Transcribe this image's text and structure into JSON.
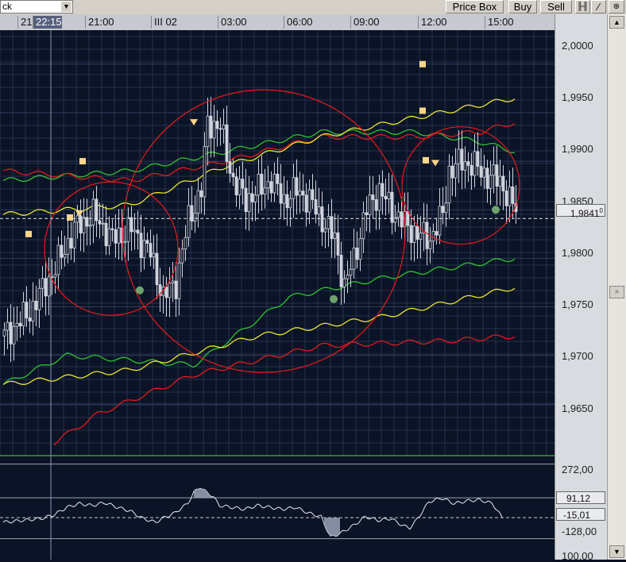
{
  "toolbar": {
    "symbol_value": "ck",
    "buttons": [
      "Price Box",
      "Buy",
      "Sell"
    ],
    "icon_names": [
      "bars-icon",
      "pen-icon",
      "crosshair-icon"
    ]
  },
  "time_axis": {
    "labels": [
      "21",
      "22:15",
      "21:00",
      "III 02",
      "03:00",
      "06:00",
      "09:00",
      "12:00",
      "15:00"
    ],
    "highlight_index": 1
  },
  "price_axis": {
    "ticks": [
      "2,0000",
      "1,9950",
      "1,9900",
      "1,9850",
      "1,9800",
      "1,9750",
      "1,9700",
      "1,9650"
    ],
    "current_price_label": "1,9841",
    "current_price_suffix": "0"
  },
  "indicator_axis": {
    "ticks": [
      "272,00",
      "-128,00",
      "100,00"
    ],
    "tags": [
      "91,12",
      "-15,01"
    ]
  },
  "colors": {
    "background": "#0b1326",
    "grid": "#24324f",
    "candle": "#cfd3dc",
    "band_green": "#2ec32e",
    "band_red": "#e11b1b",
    "band_yellow": "#e7e52a",
    "circle": "#e81b1b",
    "marker_square": "#ffd58a",
    "marker_dot": "#6fa36f",
    "indicator_fill": "#9aa3b8"
  },
  "chart_data": [
    {
      "type": "candlestick",
      "title": "",
      "x_labels": [
        "21",
        "22:15",
        "21:00",
        "III 02",
        "03:00",
        "06:00",
        "09:00",
        "12:00",
        "15:00"
      ],
      "ylim": [
        1.96,
        2.0035
      ],
      "y_ticks": [
        1.965,
        1.97,
        1.975,
        1.98,
        1.985,
        1.99,
        1.995,
        2.0
      ],
      "grid": true,
      "current_price": 1.9841,
      "close_path": [
        [
          0,
          1.972
        ],
        [
          8,
          1.9745
        ],
        [
          16,
          1.979
        ],
        [
          22,
          1.983
        ],
        [
          28,
          1.9845
        ],
        [
          34,
          1.982
        ],
        [
          40,
          1.983
        ],
        [
          46,
          1.9805
        ],
        [
          50,
          1.976
        ],
        [
          54,
          1.9775
        ],
        [
          58,
          1.984
        ],
        [
          62,
          1.987
        ],
        [
          64,
          1.994
        ],
        [
          68,
          1.9935
        ],
        [
          72,
          1.988
        ],
        [
          76,
          1.986
        ],
        [
          80,
          1.987
        ],
        [
          84,
          1.988
        ],
        [
          88,
          1.986
        ],
        [
          92,
          1.987
        ],
        [
          96,
          1.986
        ],
        [
          100,
          1.984
        ],
        [
          104,
          1.982
        ],
        [
          107,
          1.977
        ],
        [
          110,
          1.98
        ],
        [
          114,
          1.985
        ],
        [
          118,
          1.987
        ],
        [
          122,
          1.985
        ],
        [
          126,
          1.9835
        ],
        [
          130,
          1.9825
        ],
        [
          134,
          1.982
        ],
        [
          138,
          1.9845
        ],
        [
          140,
          1.989
        ],
        [
          144,
          1.99
        ],
        [
          148,
          1.9895
        ],
        [
          152,
          1.9885
        ],
        [
          156,
          1.988
        ],
        [
          159,
          1.986
        ],
        [
          161,
          1.985
        ]
      ],
      "bands": [
        {
          "color": "green",
          "upper": [
            [
              0,
              1.988
            ],
            [
              40,
              1.989
            ],
            [
              70,
              1.991
            ],
            [
              100,
              1.993
            ],
            [
              130,
              1.993
            ],
            [
              150,
              1.992
            ],
            [
              161,
              1.991
            ]
          ],
          "lower": [
            [
              0,
              1.967
            ],
            [
              20,
              1.97
            ],
            [
              60,
              1.969
            ],
            [
              90,
              1.976
            ],
            [
              120,
              1.978
            ],
            [
              140,
              1.979
            ],
            [
              161,
              1.98
            ]
          ]
        },
        {
          "color": "red",
          "upper": [
            [
              0,
              1.989
            ],
            [
              40,
              1.988
            ],
            [
              70,
              1.99
            ],
            [
              100,
              1.9925
            ],
            [
              130,
              1.9925
            ],
            [
              150,
              1.993
            ],
            [
              161,
              1.994
            ]
          ],
          "lower": [
            [
              16,
              1.961
            ],
            [
              30,
              1.964
            ],
            [
              60,
              1.968
            ],
            [
              100,
              1.971
            ],
            [
              140,
              1.9715
            ],
            [
              161,
              1.972
            ]
          ]
        },
        {
          "color": "yellow",
          "upper": [
            [
              0,
              1.9845
            ],
            [
              40,
              1.9855
            ],
            [
              70,
              1.9895
            ],
            [
              100,
              1.9925
            ],
            [
              130,
              1.9945
            ],
            [
              161,
              1.9965
            ]
          ],
          "lower": [
            [
              0,
              1.967
            ],
            [
              40,
              1.9685
            ],
            [
              80,
              1.972
            ],
            [
              120,
              1.974
            ],
            [
              161,
              1.977
            ]
          ]
        }
      ],
      "markers": [
        {
          "x": 25,
          "y": 1.99,
          "kind": "square"
        },
        {
          "x": 8,
          "y": 1.9825,
          "kind": "square"
        },
        {
          "x": 21,
          "y": 1.9842,
          "kind": "square"
        },
        {
          "x": 24,
          "y": 1.9846,
          "kind": "triangle"
        },
        {
          "x": 60,
          "y": 1.994,
          "kind": "triangle"
        },
        {
          "x": 132,
          "y": 2.0,
          "kind": "square"
        },
        {
          "x": 132,
          "y": 1.9952,
          "kind": "square"
        },
        {
          "x": 133,
          "y": 1.9901,
          "kind": "square"
        },
        {
          "x": 136,
          "y": 1.9898,
          "kind": "triangle"
        },
        {
          "x": 43,
          "y": 1.9767,
          "kind": "dot"
        },
        {
          "x": 104,
          "y": 1.9758,
          "kind": "dot"
        },
        {
          "x": 155,
          "y": 1.985,
          "kind": "dot"
        }
      ],
      "circles": [
        {
          "cx": 34,
          "cy": 1.981,
          "r": 84
        },
        {
          "cx": 82,
          "cy": 1.9828,
          "r": 178
        },
        {
          "cx": 144,
          "cy": 1.9875,
          "r": 74
        }
      ]
    },
    {
      "type": "line",
      "title": "",
      "ylim": [
        -240,
        300
      ],
      "levels": [
        272,
        91.12,
        -15.01,
        -128
      ],
      "values": [
        [
          0,
          -40
        ],
        [
          6,
          -30
        ],
        [
          12,
          -20
        ],
        [
          16,
          0
        ],
        [
          20,
          40
        ],
        [
          24,
          60
        ],
        [
          28,
          50
        ],
        [
          32,
          65
        ],
        [
          36,
          40
        ],
        [
          40,
          20
        ],
        [
          44,
          -20
        ],
        [
          48,
          -40
        ],
        [
          50,
          -20
        ],
        [
          54,
          10
        ],
        [
          58,
          60
        ],
        [
          60,
          120
        ],
        [
          62,
          150
        ],
        [
          64,
          120
        ],
        [
          66,
          100
        ],
        [
          68,
          50
        ],
        [
          72,
          40
        ],
        [
          76,
          30
        ],
        [
          80,
          50
        ],
        [
          84,
          40
        ],
        [
          88,
          30
        ],
        [
          92,
          40
        ],
        [
          96,
          10
        ],
        [
          100,
          -10
        ],
        [
          103,
          -120
        ],
        [
          106,
          -100
        ],
        [
          110,
          -60
        ],
        [
          114,
          -10
        ],
        [
          118,
          -30
        ],
        [
          122,
          -20
        ],
        [
          126,
          -60
        ],
        [
          128,
          -70
        ],
        [
          130,
          -30
        ],
        [
          134,
          70
        ],
        [
          138,
          90
        ],
        [
          142,
          60
        ],
        [
          146,
          75
        ],
        [
          150,
          80
        ],
        [
          154,
          60
        ],
        [
          157,
          -15
        ]
      ]
    }
  ]
}
